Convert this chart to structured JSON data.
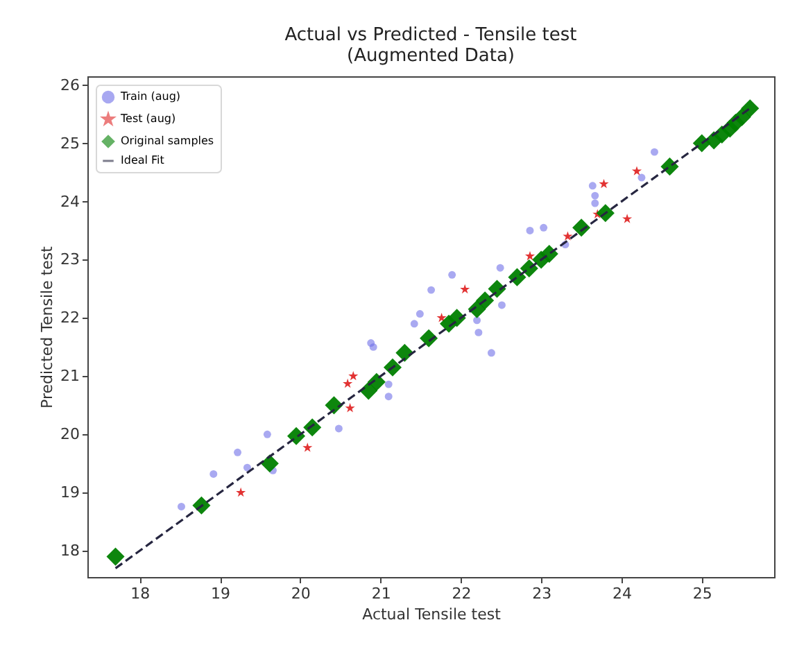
{
  "chart_data": {
    "type": "scatter",
    "title": "Actual vs Predicted - Tensile test",
    "subtitle": "(Augmented Data)",
    "xlabel": "Actual Tensile test",
    "ylabel": "Predicted Tensile test",
    "xlim": [
      17.35,
      25.9
    ],
    "ylim": [
      17.55,
      26.15
    ],
    "xticks": [
      18,
      19,
      20,
      21,
      22,
      23,
      24,
      25
    ],
    "yticks": [
      18,
      19,
      20,
      21,
      22,
      23,
      24,
      25,
      26
    ],
    "grid": false,
    "legend": "top left",
    "series": [
      {
        "name": "Train (aug)",
        "marker": "circle",
        "color": "#6f6fe8",
        "x": [
          19.22,
          19.59,
          18.92,
          19.34,
          19.66,
          18.52,
          20.48,
          21.1,
          20.91,
          22.86,
          23.03,
          21.89,
          21.63,
          21.49,
          21.42,
          20.88,
          21.1,
          22.2,
          22.22,
          22.38,
          22.51,
          22.49,
          24.41,
          24.25,
          23.64,
          23.67,
          23.67,
          23.3
        ],
        "values": [
          19.69,
          20.0,
          19.32,
          19.43,
          19.38,
          18.76,
          20.1,
          20.86,
          21.5,
          23.5,
          23.55,
          22.74,
          22.48,
          22.07,
          21.9,
          21.57,
          20.65,
          21.96,
          21.75,
          21.4,
          22.22,
          22.86,
          24.85,
          24.41,
          24.27,
          24.1,
          23.97,
          23.26
        ]
      },
      {
        "name": "Test (aug)",
        "marker": "star",
        "color": "#e02828",
        "x": [
          19.26,
          20.09,
          20.66,
          20.59,
          20.62,
          22.05,
          21.76,
          22.86,
          23.78,
          24.19,
          24.07,
          23.7,
          23.33
        ],
        "values": [
          19.0,
          19.77,
          21.0,
          20.87,
          20.45,
          22.49,
          22.0,
          23.06,
          24.3,
          24.52,
          23.7,
          23.78,
          23.4
        ]
      },
      {
        "name": "Original samples",
        "marker": "diamond",
        "color": "#008000",
        "x": [
          17.7,
          18.77,
          19.62,
          19.95,
          20.15,
          20.42,
          20.85,
          20.95,
          21.15,
          21.3,
          21.6,
          21.85,
          21.95,
          22.2,
          22.3,
          22.45,
          22.7,
          22.85,
          23.0,
          23.1,
          23.5,
          23.8,
          24.6,
          25.0,
          25.15,
          25.25,
          25.35,
          25.42,
          25.5,
          25.6
        ],
        "values": [
          17.9,
          18.78,
          19.5,
          19.97,
          20.12,
          20.5,
          20.75,
          20.9,
          21.15,
          21.4,
          21.65,
          21.9,
          22.0,
          22.15,
          22.3,
          22.5,
          22.7,
          22.85,
          23.0,
          23.1,
          23.55,
          23.8,
          24.6,
          25.0,
          25.05,
          25.15,
          25.25,
          25.35,
          25.45,
          25.6
        ]
      },
      {
        "name": "Ideal Fit",
        "type": "line",
        "marker": "none",
        "line_style": "dashed",
        "color": "#262640",
        "x": [
          17.7,
          25.6
        ],
        "values": [
          17.7,
          25.6
        ]
      }
    ]
  }
}
